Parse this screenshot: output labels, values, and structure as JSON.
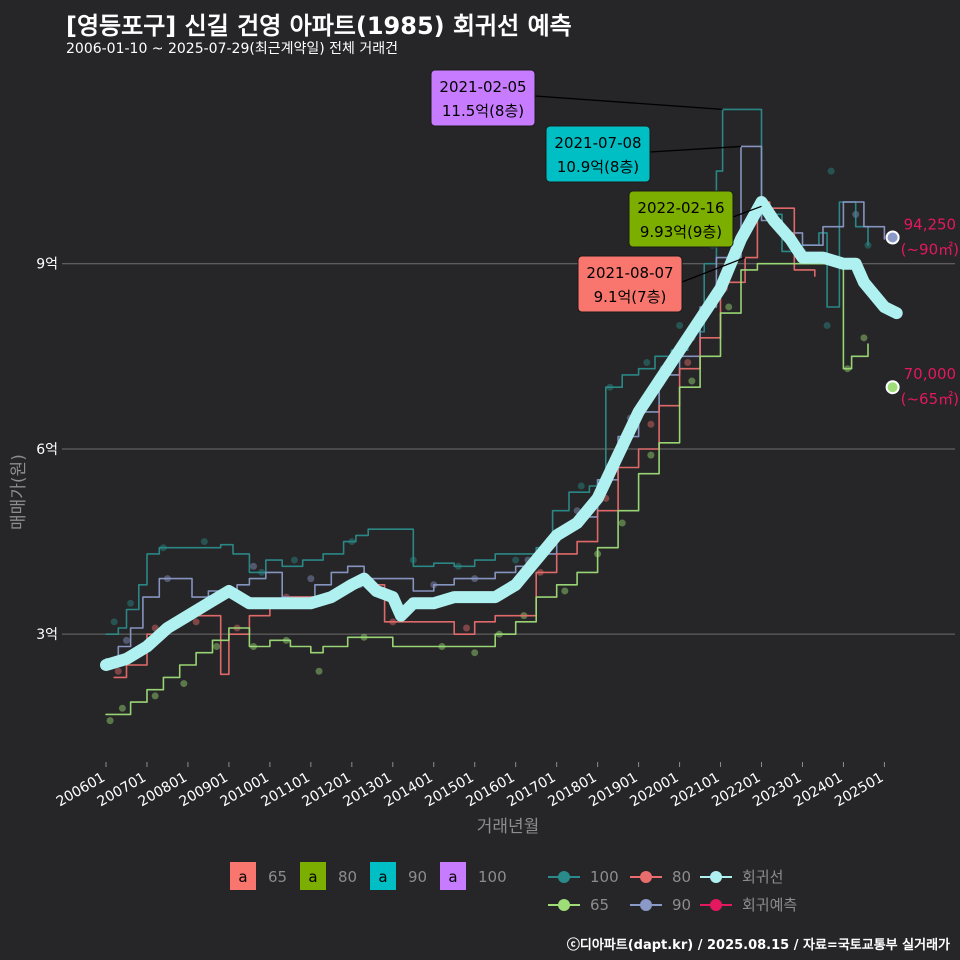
{
  "title": "[영등포구] 신길 건영 아파트(1985) 회귀선 예측",
  "subtitle": "2006-01-10 ~ 2025-07-29(최근계약일) 전체 거래건",
  "caption": "ⓒ디아파트(dapt.kr) / 2025.08.15 / 자료=국토교통부 실거래가",
  "chart_data": {
    "type": "line",
    "xlabel": "거래년월",
    "ylabel": "매매가(원)",
    "x_range": [
      2006.0,
      2025.6
    ],
    "ylim": [
      0.8,
      12.3
    ],
    "x_ticks": [
      "200601",
      "200701",
      "200801",
      "200901",
      "201001",
      "201101",
      "201201",
      "201301",
      "201401",
      "201501",
      "201601",
      "201701",
      "201801",
      "201901",
      "202001",
      "202101",
      "202201",
      "202301",
      "202401",
      "202501"
    ],
    "y_ticks": [
      {
        "value": 3,
        "label": "3억"
      },
      {
        "value": 6,
        "label": "6억"
      },
      {
        "value": 9,
        "label": "9억"
      }
    ],
    "series": [
      {
        "name": "100",
        "color": "#2a8c8a",
        "points": [
          [
            2006.0,
            3.0
          ],
          [
            2006.3,
            3.1
          ],
          [
            2006.5,
            3.4
          ],
          [
            2006.8,
            3.8
          ],
          [
            2007.0,
            4.3
          ],
          [
            2007.3,
            4.4
          ],
          [
            2007.6,
            4.4
          ],
          [
            2008.0,
            4.4
          ],
          [
            2008.4,
            4.4
          ],
          [
            2008.8,
            4.45
          ],
          [
            2009.1,
            4.3
          ],
          [
            2009.5,
            4.0
          ],
          [
            2009.9,
            4.2
          ],
          [
            2010.3,
            4.1
          ],
          [
            2010.8,
            4.2
          ],
          [
            2011.3,
            4.3
          ],
          [
            2011.8,
            4.5
          ],
          [
            2012.1,
            4.6
          ],
          [
            2012.4,
            4.7
          ],
          [
            2013.5,
            4.1
          ],
          [
            2014.0,
            4.15
          ],
          [
            2014.5,
            4.1
          ],
          [
            2015.0,
            4.2
          ],
          [
            2015.5,
            4.3
          ],
          [
            2016.0,
            4.3
          ],
          [
            2016.5,
            4.4
          ],
          [
            2016.9,
            5.0
          ],
          [
            2017.3,
            5.3
          ],
          [
            2017.8,
            5.4
          ],
          [
            2018.0,
            5.5
          ],
          [
            2018.2,
            7.0
          ],
          [
            2018.6,
            7.2
          ],
          [
            2019.0,
            7.3
          ],
          [
            2019.4,
            7.5
          ],
          [
            2019.8,
            7.6
          ],
          [
            2020.2,
            7.9
          ],
          [
            2020.6,
            9.0
          ],
          [
            2020.9,
            10.5
          ],
          [
            2021.05,
            11.5
          ],
          [
            2021.3,
            11.5
          ],
          [
            2022.0,
            9.8
          ],
          [
            2022.5,
            9.2
          ],
          [
            2023.0,
            9.3
          ],
          [
            2023.4,
            9.5
          ],
          [
            2023.6,
            8.3
          ],
          [
            2023.9,
            10.0
          ],
          [
            2024.3,
            9.6
          ],
          [
            2024.6,
            9.3
          ]
        ]
      },
      {
        "name": "90",
        "color": "#8a99c7",
        "points": [
          [
            2006.0,
            2.6
          ],
          [
            2006.3,
            2.8
          ],
          [
            2006.6,
            3.1
          ],
          [
            2006.9,
            3.6
          ],
          [
            2007.3,
            3.9
          ],
          [
            2007.7,
            3.9
          ],
          [
            2008.1,
            3.6
          ],
          [
            2008.5,
            3.7
          ],
          [
            2008.9,
            3.6
          ],
          [
            2009.2,
            3.8
          ],
          [
            2009.5,
            3.9
          ],
          [
            2009.9,
            4.0
          ],
          [
            2010.3,
            3.6
          ],
          [
            2010.7,
            3.6
          ],
          [
            2011.1,
            3.8
          ],
          [
            2011.5,
            4.0
          ],
          [
            2011.9,
            4.1
          ],
          [
            2012.3,
            3.9
          ],
          [
            2012.6,
            3.9
          ],
          [
            2013.5,
            3.7
          ],
          [
            2014.0,
            3.8
          ],
          [
            2014.5,
            3.9
          ],
          [
            2015.0,
            3.9
          ],
          [
            2015.5,
            4.0
          ],
          [
            2016.0,
            4.1
          ],
          [
            2016.5,
            4.3
          ],
          [
            2017.0,
            4.7
          ],
          [
            2017.5,
            4.9
          ],
          [
            2018.0,
            5.5
          ],
          [
            2018.5,
            6.2
          ],
          [
            2019.0,
            6.6
          ],
          [
            2019.5,
            7.2
          ],
          [
            2020.0,
            7.5
          ],
          [
            2020.5,
            8.3
          ],
          [
            2020.9,
            9.1
          ],
          [
            2021.5,
            10.9
          ],
          [
            2021.8,
            10.9
          ],
          [
            2022.0,
            9.7
          ],
          [
            2022.5,
            9.5
          ],
          [
            2023.0,
            9.3
          ],
          [
            2023.5,
            9.6
          ],
          [
            2024.0,
            10.0
          ],
          [
            2024.5,
            9.6
          ],
          [
            2025.0,
            9.4
          ]
        ]
      },
      {
        "name": "80",
        "color": "#e96d6d",
        "points": [
          [
            2006.2,
            2.3
          ],
          [
            2006.5,
            2.5
          ],
          [
            2007.0,
            3.0
          ],
          [
            2007.5,
            3.2
          ],
          [
            2008.0,
            3.3
          ],
          [
            2008.5,
            3.3
          ],
          [
            2008.8,
            2.35
          ],
          [
            2009.0,
            3.0
          ],
          [
            2009.5,
            3.3
          ],
          [
            2010.0,
            3.5
          ],
          [
            2010.5,
            3.6
          ],
          [
            2011.0,
            3.6
          ],
          [
            2011.5,
            3.7
          ],
          [
            2012.0,
            3.8
          ],
          [
            2012.8,
            3.2
          ],
          [
            2013.2,
            3.2
          ],
          [
            2014.5,
            3.0
          ],
          [
            2015.0,
            3.2
          ],
          [
            2015.5,
            3.3
          ],
          [
            2016.5,
            4.0
          ],
          [
            2017.0,
            4.3
          ],
          [
            2017.5,
            4.5
          ],
          [
            2018.0,
            5.0
          ],
          [
            2018.5,
            5.7
          ],
          [
            2019.0,
            6.0
          ],
          [
            2019.5,
            6.7
          ],
          [
            2020.0,
            7.3
          ],
          [
            2020.5,
            7.8
          ],
          [
            2021.0,
            8.7
          ],
          [
            2021.6,
            9.1
          ],
          [
            2021.9,
            10.0
          ],
          [
            2022.2,
            9.9
          ],
          [
            2022.8,
            8.9
          ],
          [
            2023.3,
            8.8
          ]
        ]
      },
      {
        "name": "65",
        "color": "#9edd78",
        "points": [
          [
            2006.0,
            1.7
          ],
          [
            2006.3,
            1.7
          ],
          [
            2006.6,
            1.9
          ],
          [
            2007.0,
            2.1
          ],
          [
            2007.4,
            2.3
          ],
          [
            2007.8,
            2.5
          ],
          [
            2008.2,
            2.7
          ],
          [
            2008.6,
            2.9
          ],
          [
            2009.0,
            3.1
          ],
          [
            2009.5,
            2.8
          ],
          [
            2010.0,
            2.9
          ],
          [
            2010.5,
            2.8
          ],
          [
            2011.0,
            2.7
          ],
          [
            2011.3,
            2.8
          ],
          [
            2011.9,
            2.95
          ],
          [
            2012.4,
            2.95
          ],
          [
            2013.0,
            2.8
          ],
          [
            2014.0,
            2.8
          ],
          [
            2014.5,
            2.8
          ],
          [
            2015.0,
            2.8
          ],
          [
            2015.5,
            3.0
          ],
          [
            2016.0,
            3.2
          ],
          [
            2016.5,
            3.6
          ],
          [
            2017.0,
            3.8
          ],
          [
            2017.5,
            4.0
          ],
          [
            2018.0,
            4.4
          ],
          [
            2018.5,
            5.0
          ],
          [
            2019.0,
            5.6
          ],
          [
            2019.5,
            6.1
          ],
          [
            2020.0,
            7.0
          ],
          [
            2020.5,
            7.5
          ],
          [
            2021.0,
            8.2
          ],
          [
            2021.5,
            8.9
          ],
          [
            2021.9,
            9.0
          ],
          [
            2022.0,
            9.0
          ],
          [
            2024.0,
            7.3
          ],
          [
            2024.2,
            7.5
          ],
          [
            2024.6,
            7.7
          ]
        ]
      },
      {
        "name": "회귀선",
        "color": "#aff0f0",
        "points": [
          [
            2006.0,
            2.5
          ],
          [
            2006.5,
            2.6
          ],
          [
            2007.0,
            2.8
          ],
          [
            2007.5,
            3.1
          ],
          [
            2008.0,
            3.3
          ],
          [
            2008.5,
            3.5
          ],
          [
            2009.0,
            3.7
          ],
          [
            2009.5,
            3.5
          ],
          [
            2010.0,
            3.5
          ],
          [
            2010.5,
            3.5
          ],
          [
            2011.0,
            3.5
          ],
          [
            2011.5,
            3.6
          ],
          [
            2012.0,
            3.8
          ],
          [
            2012.3,
            3.9
          ],
          [
            2012.6,
            3.7
          ],
          [
            2013.0,
            3.6
          ],
          [
            2013.2,
            3.3
          ],
          [
            2013.5,
            3.5
          ],
          [
            2014.0,
            3.5
          ],
          [
            2014.5,
            3.6
          ],
          [
            2015.0,
            3.6
          ],
          [
            2015.5,
            3.6
          ],
          [
            2016.0,
            3.8
          ],
          [
            2016.5,
            4.2
          ],
          [
            2017.0,
            4.6
          ],
          [
            2017.5,
            4.8
          ],
          [
            2018.0,
            5.2
          ],
          [
            2018.5,
            5.9
          ],
          [
            2019.0,
            6.6
          ],
          [
            2019.5,
            7.1
          ],
          [
            2020.0,
            7.6
          ],
          [
            2020.5,
            8.1
          ],
          [
            2021.0,
            8.6
          ],
          [
            2021.5,
            9.4
          ],
          [
            2022.0,
            10.0
          ],
          [
            2022.3,
            9.7
          ],
          [
            2022.7,
            9.4
          ],
          [
            2023.0,
            9.1
          ],
          [
            2023.5,
            9.1
          ],
          [
            2024.0,
            9.0
          ],
          [
            2024.3,
            9.0
          ],
          [
            2024.5,
            8.7
          ],
          [
            2025.0,
            8.3
          ],
          [
            2025.3,
            8.2
          ]
        ]
      }
    ],
    "scatter_by_group": {
      "100": [
        [
          2006.2,
          3.2
        ],
        [
          2006.6,
          3.5
        ],
        [
          2007.4,
          4.4
        ],
        [
          2008.4,
          4.5
        ],
        [
          2009.8,
          4.0
        ],
        [
          2010.6,
          4.2
        ],
        [
          2012.0,
          4.5
        ],
        [
          2013.5,
          4.2
        ],
        [
          2014.6,
          4.1
        ],
        [
          2016.0,
          4.2
        ],
        [
          2017.6,
          5.4
        ],
        [
          2018.3,
          7.0
        ],
        [
          2019.2,
          7.4
        ],
        [
          2020.0,
          8.0
        ],
        [
          2020.8,
          9.3
        ],
        [
          2023.6,
          8.0
        ],
        [
          2023.7,
          10.5
        ],
        [
          2024.6,
          9.3
        ]
      ],
      "90": [
        [
          2006.0,
          2.5
        ],
        [
          2006.5,
          2.9
        ],
        [
          2007.5,
          3.9
        ],
        [
          2008.8,
          3.6
        ],
        [
          2009.6,
          4.1
        ],
        [
          2011.0,
          3.9
        ],
        [
          2012.2,
          3.8
        ],
        [
          2014.0,
          3.8
        ],
        [
          2015.0,
          3.9
        ],
        [
          2016.3,
          4.2
        ],
        [
          2017.5,
          5.0
        ],
        [
          2018.8,
          6.5
        ],
        [
          2019.6,
          7.3
        ],
        [
          2020.3,
          7.8
        ],
        [
          2023.0,
          9.2
        ],
        [
          2024.3,
          9.8
        ]
      ],
      "80": [
        [
          2006.3,
          2.4
        ],
        [
          2007.2,
          3.1
        ],
        [
          2008.2,
          3.2
        ],
        [
          2009.2,
          3.1
        ],
        [
          2010.4,
          3.6
        ],
        [
          2011.7,
          3.7
        ],
        [
          2013.0,
          3.2
        ],
        [
          2014.8,
          3.1
        ],
        [
          2016.6,
          4.0
        ],
        [
          2018.2,
          5.2
        ],
        [
          2019.3,
          6.4
        ],
        [
          2020.2,
          7.4
        ],
        [
          2021.1,
          8.6
        ],
        [
          2022.1,
          9.9
        ]
      ],
      "65": [
        [
          2006.1,
          1.6
        ],
        [
          2006.4,
          1.8
        ],
        [
          2007.2,
          2.0
        ],
        [
          2007.9,
          2.2
        ],
        [
          2008.7,
          2.8
        ],
        [
          2009.6,
          2.8
        ],
        [
          2010.4,
          2.9
        ],
        [
          2011.2,
          2.4
        ],
        [
          2012.3,
          2.95
        ],
        [
          2014.2,
          2.8
        ],
        [
          2015.0,
          2.7
        ],
        [
          2015.6,
          3.0
        ],
        [
          2016.2,
          3.3
        ],
        [
          2017.2,
          3.7
        ],
        [
          2018.0,
          4.3
        ],
        [
          2018.6,
          4.8
        ],
        [
          2019.3,
          5.9
        ],
        [
          2020.3,
          7.1
        ],
        [
          2021.2,
          8.3
        ],
        [
          2024.1,
          7.3
        ],
        [
          2024.5,
          7.8
        ]
      ]
    },
    "endpoints": [
      {
        "group": "90",
        "x": 2025.2,
        "y": 9.425,
        "color": "#8a99c7",
        "label": "94,250",
        "sub": "(~90㎡)",
        "label_color": "#e3185f"
      },
      {
        "group": "65",
        "x": 2025.2,
        "y": 7.0,
        "color": "#9edd78",
        "label": "70,000",
        "sub": "(~65㎡)",
        "label_color": "#e3185f"
      }
    ],
    "annotations": [
      {
        "date": "2021-02-05",
        "text": "11.5억(8층)",
        "fill": "#c77cff",
        "x": 2021.05,
        "y": 11.5
      },
      {
        "date": "2021-07-08",
        "text": "10.9억(8층)",
        "fill": "#00bfc4",
        "x": 2021.5,
        "y": 10.9
      },
      {
        "date": "2022-02-16",
        "text": "9.93억(9층)",
        "fill": "#7cae00",
        "x": 2022.0,
        "y": 9.93
      },
      {
        "date": "2021-08-07",
        "text": "9.1억(7층)",
        "fill": "#f8766d",
        "x": 2021.6,
        "y": 9.1
      }
    ],
    "legend_area": [
      {
        "key": "a",
        "label": "65",
        "fill": "#f8766d"
      },
      {
        "key": "a",
        "label": "80",
        "fill": "#7cae00"
      },
      {
        "key": "a",
        "label": "90",
        "fill": "#00bfc4"
      },
      {
        "key": "a",
        "label": "100",
        "fill": "#c77cff"
      }
    ],
    "legend_lines": [
      {
        "label": "100",
        "color": "#2a8c8a"
      },
      {
        "label": "80",
        "color": "#e96d6d"
      },
      {
        "label": "회귀선",
        "color": "#aff0f0"
      },
      {
        "label": "65",
        "color": "#9edd78"
      },
      {
        "label": "90",
        "color": "#8a99c7"
      },
      {
        "label": "회귀예측",
        "color": "#e3185f"
      }
    ]
  }
}
